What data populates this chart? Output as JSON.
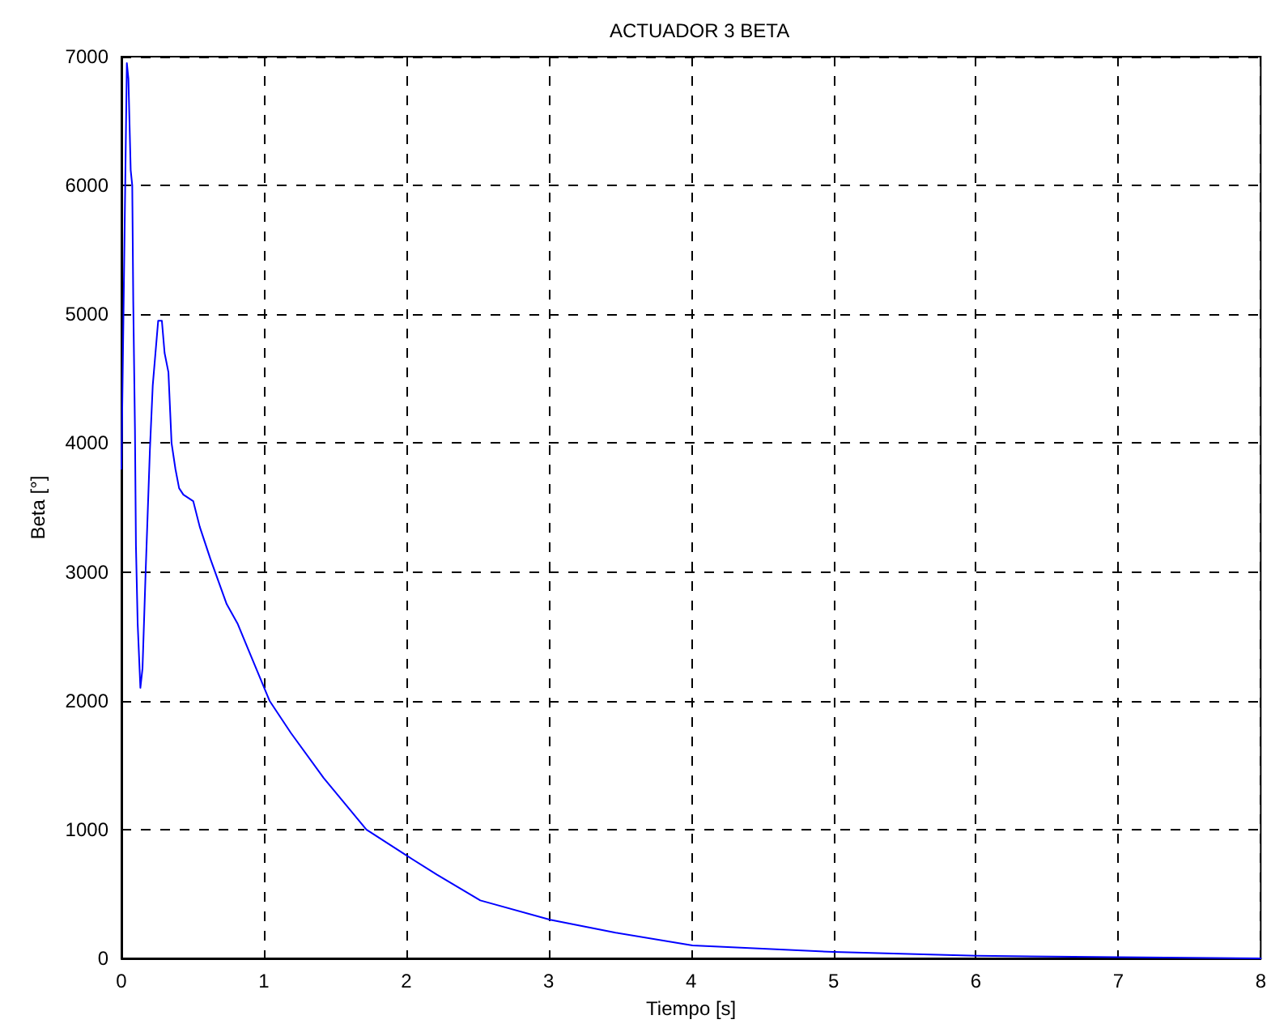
{
  "chart_data": {
    "type": "line",
    "title": "ACTUADOR 3 BETA",
    "xlabel": "Tiempo [s]",
    "ylabel": "Beta [°]",
    "xlim": [
      0,
      8
    ],
    "xticks": [
      0,
      1,
      2,
      3,
      4,
      5,
      6,
      7,
      8
    ],
    "ylim": [
      0,
      7000
    ],
    "yticks": [
      0,
      1000,
      2000,
      3000,
      4000,
      5000,
      6000,
      7000
    ],
    "grid": true,
    "marker": "none",
    "line_style": "solid",
    "series": [
      {
        "color": "#0000ff",
        "x": [
          0,
          0.038,
          0.049,
          0.065,
          0.076,
          0.083,
          0.095,
          0.102,
          0.114,
          0.133,
          0.148,
          0.17,
          0.2,
          0.22,
          0.239,
          0.258,
          0.284,
          0.303,
          0.33,
          0.352,
          0.379,
          0.405,
          0.435,
          0.504,
          0.55,
          0.625,
          0.739,
          0.815,
          0.89,
          1.04,
          1.19,
          1.42,
          1.72,
          2.0,
          2.216,
          2.52,
          3.01,
          3.24,
          3.47,
          4.01,
          5.0,
          6.0,
          7.0,
          8.0
        ],
        "values": [
          3800,
          6950,
          6830,
          6120,
          6000,
          5100,
          4100,
          3200,
          2600,
          2100,
          2250,
          3000,
          3950,
          4450,
          4700,
          4950,
          4950,
          4700,
          4550,
          4000,
          3800,
          3650,
          3600,
          3550,
          3350,
          3100,
          2750,
          2600,
          2400,
          2000,
          1750,
          1400,
          1000,
          800,
          650,
          450,
          300,
          250,
          200,
          100,
          50,
          20,
          10,
          0
        ]
      }
    ]
  }
}
